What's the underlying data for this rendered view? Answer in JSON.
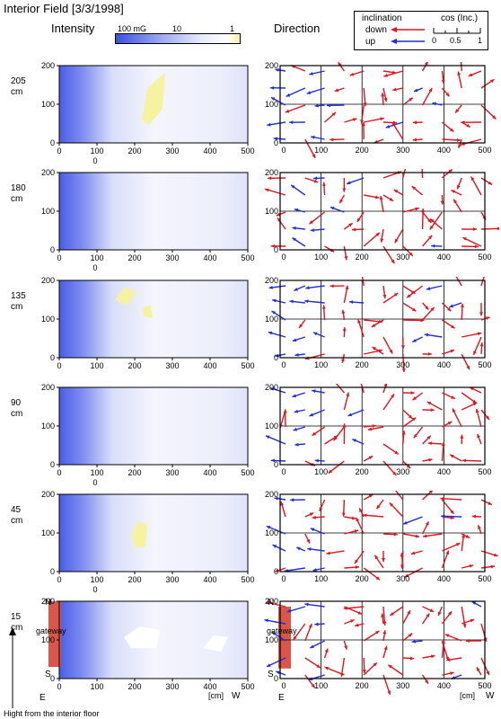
{
  "title": "Interior Field [3/3/1998]",
  "headers": {
    "intensity": "Intensity",
    "direction": "Direction"
  },
  "intensity_legend": {
    "labels": [
      "100 mG",
      "10",
      "1"
    ],
    "colors": [
      "#3a4fe0",
      "#ffffff",
      "#f6f3a0"
    ]
  },
  "direction_legend": {
    "inclination": "inclination",
    "down": "down",
    "up": "up",
    "cos_label": "cos (Inc.)",
    "ticks": [
      "0",
      "0.5",
      "1"
    ]
  },
  "colors": {
    "down": "#e0141e",
    "up": "#1f2fd6",
    "gateway": "#d9574a",
    "weak": "#f6f3a0"
  },
  "axis": {
    "x_ticks": [
      "0",
      "100",
      "200",
      "300",
      "400",
      "500"
    ],
    "y_ticks": [
      "0",
      "100",
      "200"
    ],
    "unit": "[cm]",
    "west": "W",
    "east": "E",
    "north": "N",
    "south": "S",
    "gateway": "gateway"
  },
  "panels": [
    {
      "height": "205",
      "unit": "cm",
      "x_extra": "0"
    },
    {
      "height": "180",
      "unit": "cm",
      "x_extra": "0"
    },
    {
      "height": "135",
      "unit": "cm",
      "x_extra": ""
    },
    {
      "height": "90",
      "unit": "cm",
      "x_extra": "0"
    },
    {
      "height": "45",
      "unit": "cm",
      "x_extra": "0"
    },
    {
      "height": "15",
      "unit": "cm",
      "x_extra": ""
    }
  ],
  "footer": "Hight from the interior floor"
}
